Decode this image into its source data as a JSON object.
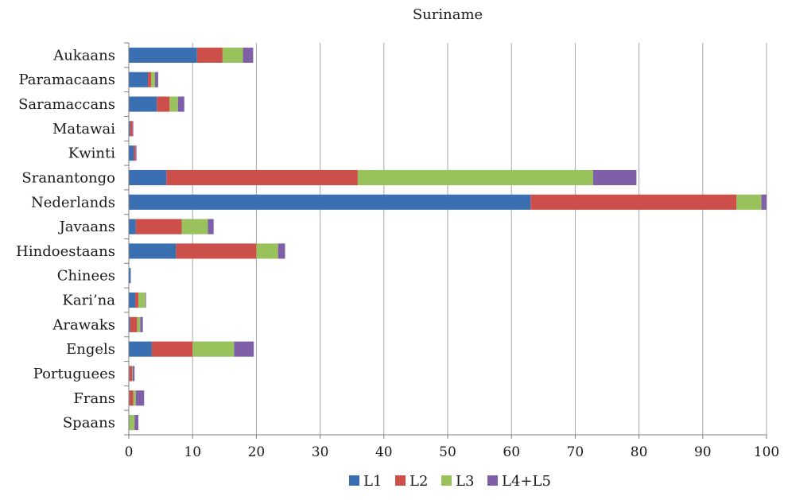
{
  "chart_data": {
    "type": "bar",
    "orientation": "horizontal",
    "stacked": true,
    "title": "Suriname",
    "xlabel": "",
    "ylabel": "",
    "xlim": [
      0,
      100
    ],
    "x_ticks": [
      0,
      10,
      20,
      30,
      40,
      50,
      60,
      70,
      80,
      90,
      100
    ],
    "grid": "vertical",
    "legend": "bottom-center",
    "categories": [
      "Aukaans",
      "Paramacaans",
      "Saramaccans",
      "Matawai",
      "Kwinti",
      "Sranantongo",
      "Nederlands",
      "Javaans",
      "Hindoestaans",
      "Chinees",
      "Kari’na",
      "Arawaks",
      "Engels",
      "Portuguees",
      "Frans",
      "Spaans"
    ],
    "series": [
      {
        "name": "L1",
        "color": "#3a70b2",
        "values": [
          10.7,
          3.0,
          4.4,
          0.2,
          0.8,
          5.9,
          63.0,
          1.1,
          7.4,
          0.3,
          1.0,
          0.2,
          3.6,
          0.1,
          0.1,
          0.1
        ]
      },
      {
        "name": "L2",
        "color": "#cd4f4a",
        "values": [
          4.0,
          0.5,
          2.0,
          0.4,
          0.3,
          30.0,
          32.3,
          7.2,
          12.6,
          0.0,
          0.5,
          1.1,
          6.4,
          0.4,
          0.6,
          0.0
        ]
      },
      {
        "name": "L3",
        "color": "#99c25c",
        "values": [
          3.2,
          0.6,
          1.3,
          0.0,
          0.0,
          36.9,
          3.9,
          4.1,
          3.4,
          0.0,
          1.1,
          0.5,
          6.5,
          0.1,
          0.4,
          0.8
        ]
      },
      {
        "name": "L4+L5",
        "color": "#7f5fa8",
        "values": [
          1.6,
          0.5,
          1.0,
          0.1,
          0.1,
          6.8,
          0.8,
          0.9,
          1.1,
          0.0,
          0.1,
          0.4,
          3.1,
          0.3,
          1.3,
          0.6
        ]
      }
    ]
  }
}
